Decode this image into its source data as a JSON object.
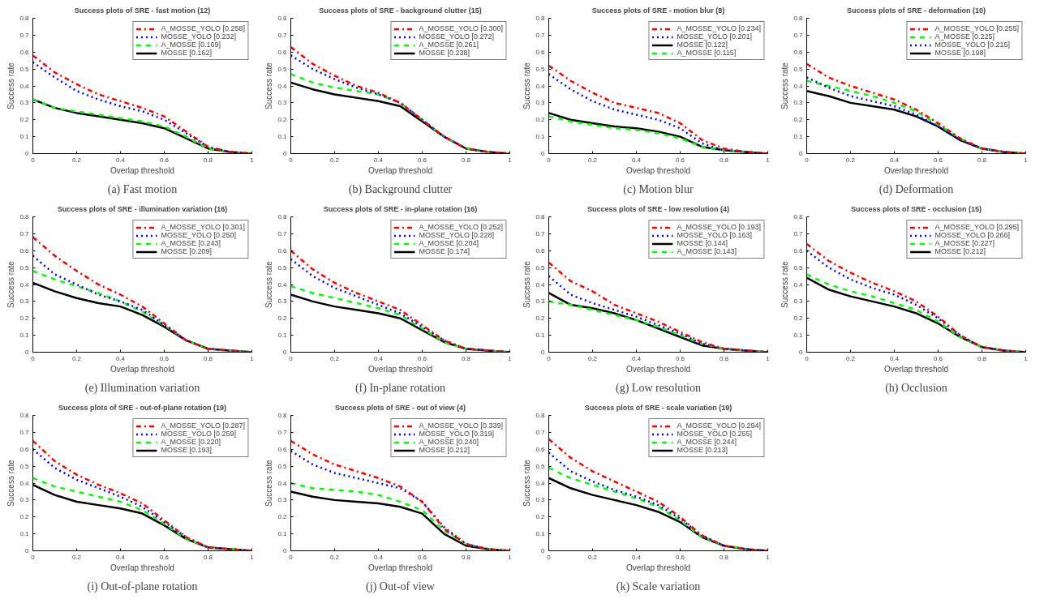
{
  "chart_data": [
    {
      "type": "line",
      "title": "Success plots of SRE - fast motion (12)",
      "xlabel": "Overlap threshold",
      "ylabel": "Success rate",
      "annotations": [
        "(a) Fast motion"
      ],
      "x": [
        0,
        0.1,
        0.2,
        0.3,
        0.4,
        0.5,
        0.6,
        0.7,
        0.8,
        0.9,
        1
      ],
      "xlim": [
        0,
        1
      ],
      "ylim": [
        0,
        0.8
      ],
      "xticks": [
        0,
        0.2,
        0.4,
        0.6,
        0.8,
        1
      ],
      "yticks": [
        0,
        0.1,
        0.2,
        0.3,
        0.4,
        0.5,
        0.6,
        0.7,
        0.8
      ],
      "legend": "top right",
      "series": [
        {
          "name": "A_MOSSE_YOLO [0.258]",
          "color": "#ff0000",
          "line_style": "dashdot",
          "values": [
            0.58,
            0.48,
            0.41,
            0.35,
            0.31,
            0.27,
            0.22,
            0.13,
            0.04,
            0.01,
            0
          ]
        },
        {
          "name": "MOSSE_YOLO [0.232]",
          "color": "#0000ff",
          "line_style": "dotted",
          "values": [
            0.54,
            0.45,
            0.37,
            0.32,
            0.28,
            0.25,
            0.2,
            0.12,
            0.04,
            0.01,
            0
          ]
        },
        {
          "name": "A_MOSSE [0.169]",
          "color": "#00ff00",
          "line_style": "dashed",
          "values": [
            0.32,
            0.27,
            0.25,
            0.23,
            0.21,
            0.19,
            0.16,
            0.1,
            0.03,
            0.01,
            0
          ]
        },
        {
          "name": "MOSSE [0.162]",
          "color": "#000000",
          "line_style": "solid",
          "values": [
            0.32,
            0.27,
            0.24,
            0.22,
            0.2,
            0.18,
            0.15,
            0.09,
            0.03,
            0.01,
            0
          ]
        }
      ]
    },
    {
      "type": "line",
      "title": "Success plots of SRE - background clutter (15)",
      "xlabel": "Overlap threshold",
      "ylabel": "Success rate",
      "annotations": [
        "(b) Background clutter"
      ],
      "x": [
        0,
        0.1,
        0.2,
        0.3,
        0.4,
        0.5,
        0.6,
        0.7,
        0.8,
        0.9,
        1
      ],
      "xlim": [
        0,
        1
      ],
      "ylim": [
        0,
        0.8
      ],
      "xticks": [
        0,
        0.2,
        0.4,
        0.6,
        0.8,
        1
      ],
      "yticks": [
        0,
        0.1,
        0.2,
        0.3,
        0.4,
        0.5,
        0.6,
        0.7,
        0.8
      ],
      "legend": "top right",
      "series": [
        {
          "name": "A_MOSSE_YOLO [0.300]",
          "color": "#ff0000",
          "line_style": "dashdot",
          "values": [
            0.63,
            0.53,
            0.46,
            0.4,
            0.36,
            0.3,
            0.2,
            0.1,
            0.03,
            0.01,
            0
          ]
        },
        {
          "name": "MOSSE_YOLO [0.272]",
          "color": "#0000ff",
          "line_style": "dotted",
          "values": [
            0.58,
            0.5,
            0.44,
            0.39,
            0.35,
            0.3,
            0.2,
            0.1,
            0.03,
            0.01,
            0
          ]
        },
        {
          "name": "A_MOSSE [0.261]",
          "color": "#00ff00",
          "line_style": "dashed",
          "values": [
            0.47,
            0.42,
            0.39,
            0.37,
            0.35,
            0.3,
            0.2,
            0.1,
            0.03,
            0.01,
            0
          ]
        },
        {
          "name": "MOSSE [0.238]",
          "color": "#000000",
          "line_style": "solid",
          "values": [
            0.42,
            0.38,
            0.35,
            0.33,
            0.31,
            0.28,
            0.19,
            0.1,
            0.03,
            0.01,
            0
          ]
        }
      ]
    },
    {
      "type": "line",
      "title": "Success plots of SRE - motion blur (8)",
      "xlabel": "Overlap threshold",
      "ylabel": "Success rate",
      "annotations": [
        "(c) Motion blur"
      ],
      "x": [
        0,
        0.1,
        0.2,
        0.3,
        0.4,
        0.5,
        0.6,
        0.7,
        0.8,
        0.9,
        1
      ],
      "xlim": [
        0,
        1
      ],
      "ylim": [
        0,
        0.8
      ],
      "xticks": [
        0,
        0.2,
        0.4,
        0.6,
        0.8,
        1
      ],
      "yticks": [
        0,
        0.1,
        0.2,
        0.3,
        0.4,
        0.5,
        0.6,
        0.7,
        0.8
      ],
      "legend": "top right",
      "series": [
        {
          "name": "A_MOSSE_YOLO [0.234]",
          "color": "#ff0000",
          "line_style": "dashdot",
          "values": [
            0.52,
            0.43,
            0.36,
            0.3,
            0.27,
            0.24,
            0.18,
            0.08,
            0.03,
            0.01,
            0
          ]
        },
        {
          "name": "MOSSE_YOLO [0.201]",
          "color": "#0000ff",
          "line_style": "dotted",
          "values": [
            0.47,
            0.38,
            0.31,
            0.26,
            0.23,
            0.2,
            0.15,
            0.06,
            0.02,
            0.01,
            0
          ]
        },
        {
          "name": "MOSSE [0.122]",
          "color": "#000000",
          "line_style": "solid",
          "values": [
            0.24,
            0.2,
            0.18,
            0.16,
            0.15,
            0.13,
            0.1,
            0.04,
            0.02,
            0.01,
            0
          ]
        },
        {
          "name": "A_MOSSE [0.115]",
          "color": "#00ff00",
          "line_style": "dashed",
          "values": [
            0.22,
            0.19,
            0.17,
            0.15,
            0.14,
            0.12,
            0.09,
            0.04,
            0.02,
            0.01,
            0
          ]
        }
      ]
    },
    {
      "type": "line",
      "title": "Success plots of SRE - deformation (10)",
      "xlabel": "Overlap threshold",
      "ylabel": "Success rate",
      "annotations": [
        "(d) Deformation"
      ],
      "x": [
        0,
        0.1,
        0.2,
        0.3,
        0.4,
        0.5,
        0.6,
        0.7,
        0.8,
        0.9,
        1
      ],
      "xlim": [
        0,
        1
      ],
      "ylim": [
        0,
        0.8
      ],
      "xticks": [
        0,
        0.2,
        0.4,
        0.6,
        0.8,
        1
      ],
      "yticks": [
        0,
        0.1,
        0.2,
        0.3,
        0.4,
        0.5,
        0.6,
        0.7,
        0.8
      ],
      "legend": "top right",
      "series": [
        {
          "name": "A_MOSSE_YOLO [0.255]",
          "color": "#ff0000",
          "line_style": "dashdot",
          "values": [
            0.53,
            0.45,
            0.4,
            0.36,
            0.32,
            0.26,
            0.18,
            0.09,
            0.03,
            0.01,
            0
          ]
        },
        {
          "name": "A_MOSSE [0.225]",
          "color": "#00ff00",
          "line_style": "dashed",
          "values": [
            0.43,
            0.4,
            0.37,
            0.34,
            0.3,
            0.25,
            0.17,
            0.09,
            0.03,
            0.01,
            0
          ]
        },
        {
          "name": "MOSSE_YOLO [0.215]",
          "color": "#0000ff",
          "line_style": "dotted",
          "values": [
            0.45,
            0.39,
            0.34,
            0.31,
            0.28,
            0.23,
            0.16,
            0.08,
            0.03,
            0.01,
            0
          ]
        },
        {
          "name": "MOSSE [0.198]",
          "color": "#000000",
          "line_style": "solid",
          "values": [
            0.37,
            0.34,
            0.3,
            0.28,
            0.26,
            0.22,
            0.16,
            0.08,
            0.03,
            0.01,
            0
          ]
        }
      ]
    },
    {
      "type": "line",
      "title": "Success plots of SRE - illumination variation (16)",
      "xlabel": "Overlap threshold",
      "ylabel": "Success rate",
      "annotations": [
        "(e) Illumination variation"
      ],
      "x": [
        0,
        0.1,
        0.2,
        0.3,
        0.4,
        0.5,
        0.6,
        0.7,
        0.8,
        0.9,
        1
      ],
      "xlim": [
        0,
        1
      ],
      "ylim": [
        0,
        0.8
      ],
      "xticks": [
        0,
        0.2,
        0.4,
        0.6,
        0.8,
        1
      ],
      "yticks": [
        0,
        0.1,
        0.2,
        0.3,
        0.4,
        0.5,
        0.6,
        0.7,
        0.8
      ],
      "legend": "top right",
      "series": [
        {
          "name": "A_MOSSE_YOLO [0.301]",
          "color": "#ff0000",
          "line_style": "dashdot",
          "values": [
            0.68,
            0.57,
            0.48,
            0.4,
            0.34,
            0.27,
            0.17,
            0.07,
            0.02,
            0.01,
            0
          ]
        },
        {
          "name": "MOSSE_YOLO [0.250]",
          "color": "#0000ff",
          "line_style": "dotted",
          "values": [
            0.57,
            0.46,
            0.4,
            0.34,
            0.3,
            0.25,
            0.16,
            0.07,
            0.02,
            0.01,
            0
          ]
        },
        {
          "name": "A_MOSSE [0.243]",
          "color": "#00ff00",
          "line_style": "dashed",
          "values": [
            0.48,
            0.43,
            0.39,
            0.35,
            0.3,
            0.24,
            0.16,
            0.07,
            0.02,
            0.01,
            0
          ]
        },
        {
          "name": "MOSSE [0.209]",
          "color": "#000000",
          "line_style": "solid",
          "values": [
            0.41,
            0.36,
            0.32,
            0.29,
            0.27,
            0.22,
            0.15,
            0.07,
            0.02,
            0.01,
            0
          ]
        }
      ]
    },
    {
      "type": "line",
      "title": "Success plots of SRE - in-plane rotation (16)",
      "xlabel": "Overlap threshold",
      "ylabel": "Success rate",
      "annotations": [
        "(f) In-plane rotation"
      ],
      "x": [
        0,
        0.1,
        0.2,
        0.3,
        0.4,
        0.5,
        0.6,
        0.7,
        0.8,
        0.9,
        1
      ],
      "xlim": [
        0,
        1
      ],
      "ylim": [
        0,
        0.8
      ],
      "xticks": [
        0,
        0.2,
        0.4,
        0.6,
        0.8,
        1
      ],
      "yticks": [
        0,
        0.1,
        0.2,
        0.3,
        0.4,
        0.5,
        0.6,
        0.7,
        0.8
      ],
      "legend": "top right",
      "series": [
        {
          "name": "A_MOSSE_YOLO [0.252]",
          "color": "#ff0000",
          "line_style": "dashdot",
          "values": [
            0.6,
            0.49,
            0.41,
            0.35,
            0.3,
            0.25,
            0.16,
            0.07,
            0.02,
            0.01,
            0
          ]
        },
        {
          "name": "MOSSE_YOLO [0.228]",
          "color": "#0000ff",
          "line_style": "dotted",
          "values": [
            0.55,
            0.45,
            0.38,
            0.33,
            0.28,
            0.23,
            0.15,
            0.07,
            0.02,
            0.01,
            0
          ]
        },
        {
          "name": "A_MOSSE [0.204]",
          "color": "#00ff00",
          "line_style": "dashed",
          "values": [
            0.39,
            0.35,
            0.32,
            0.29,
            0.26,
            0.22,
            0.14,
            0.06,
            0.02,
            0.01,
            0
          ]
        },
        {
          "name": "MOSSE [0.174]",
          "color": "#000000",
          "line_style": "solid",
          "values": [
            0.34,
            0.3,
            0.27,
            0.25,
            0.23,
            0.2,
            0.13,
            0.06,
            0.02,
            0.01,
            0
          ]
        }
      ]
    },
    {
      "type": "line",
      "title": "Success plots of SRE - low resolution (4)",
      "xlabel": "Overlap threshold",
      "ylabel": "Success rate",
      "annotations": [
        "(g) Low resolution"
      ],
      "x": [
        0,
        0.1,
        0.2,
        0.3,
        0.4,
        0.5,
        0.6,
        0.7,
        0.8,
        0.9,
        1
      ],
      "xlim": [
        0,
        1
      ],
      "ylim": [
        0,
        0.8
      ],
      "xticks": [
        0,
        0.2,
        0.4,
        0.6,
        0.8,
        1
      ],
      "yticks": [
        0,
        0.1,
        0.2,
        0.3,
        0.4,
        0.5,
        0.6,
        0.7,
        0.8
      ],
      "legend": "top right",
      "series": [
        {
          "name": "A_MOSSE_YOLO [0.193]",
          "color": "#ff0000",
          "line_style": "dashdot",
          "values": [
            0.53,
            0.42,
            0.36,
            0.28,
            0.23,
            0.18,
            0.12,
            0.06,
            0.02,
            0.01,
            0
          ]
        },
        {
          "name": "MOSSE_YOLO [0.163]",
          "color": "#0000ff",
          "line_style": "dotted",
          "values": [
            0.45,
            0.34,
            0.29,
            0.25,
            0.21,
            0.16,
            0.11,
            0.05,
            0.02,
            0.01,
            0
          ]
        },
        {
          "name": "MOSSE [0.144]",
          "color": "#000000",
          "line_style": "solid",
          "values": [
            0.35,
            0.28,
            0.26,
            0.23,
            0.19,
            0.14,
            0.09,
            0.04,
            0.02,
            0.01,
            0
          ]
        },
        {
          "name": "A_MOSSE [0.143]",
          "color": "#00ff00",
          "line_style": "dashed",
          "values": [
            0.3,
            0.28,
            0.25,
            0.22,
            0.19,
            0.15,
            0.1,
            0.05,
            0.02,
            0.01,
            0
          ]
        }
      ]
    },
    {
      "type": "line",
      "title": "Success plots of SRE - occlusion (15)",
      "xlabel": "Overlap threshold",
      "ylabel": "Success rate",
      "annotations": [
        "(h) Occlusion"
      ],
      "x": [
        0,
        0.1,
        0.2,
        0.3,
        0.4,
        0.5,
        0.6,
        0.7,
        0.8,
        0.9,
        1
      ],
      "xlim": [
        0,
        1
      ],
      "ylim": [
        0,
        0.8
      ],
      "xticks": [
        0,
        0.2,
        0.4,
        0.6,
        0.8,
        1
      ],
      "yticks": [
        0,
        0.1,
        0.2,
        0.3,
        0.4,
        0.5,
        0.6,
        0.7,
        0.8
      ],
      "legend": "top right",
      "series": [
        {
          "name": "A_MOSSE_YOLO [0.295]",
          "color": "#ff0000",
          "line_style": "dashdot",
          "values": [
            0.64,
            0.54,
            0.47,
            0.41,
            0.36,
            0.3,
            0.21,
            0.1,
            0.03,
            0.01,
            0
          ]
        },
        {
          "name": "MOSSE_YOLO [0.266]",
          "color": "#0000ff",
          "line_style": "dotted",
          "values": [
            0.6,
            0.5,
            0.43,
            0.38,
            0.34,
            0.28,
            0.2,
            0.1,
            0.03,
            0.01,
            0
          ]
        },
        {
          "name": "A_MOSSE [0.227]",
          "color": "#00ff00",
          "line_style": "dashed",
          "values": [
            0.46,
            0.4,
            0.36,
            0.33,
            0.29,
            0.25,
            0.18,
            0.09,
            0.03,
            0.01,
            0
          ]
        },
        {
          "name": "MOSSE [0.212]",
          "color": "#000000",
          "line_style": "solid",
          "values": [
            0.44,
            0.37,
            0.33,
            0.3,
            0.27,
            0.23,
            0.17,
            0.09,
            0.03,
            0.01,
            0
          ]
        }
      ]
    },
    {
      "type": "line",
      "title": "Success plots of SRE - out-of-plane rotation (19)",
      "xlabel": "Overlap threshold",
      "ylabel": "Success rate",
      "annotations": [
        "(i) Out-of-plane rotation"
      ],
      "x": [
        0,
        0.1,
        0.2,
        0.3,
        0.4,
        0.5,
        0.6,
        0.7,
        0.8,
        0.9,
        1
      ],
      "xlim": [
        0,
        1
      ],
      "ylim": [
        0,
        0.8
      ],
      "xticks": [
        0,
        0.2,
        0.4,
        0.6,
        0.8,
        1
      ],
      "yticks": [
        0,
        0.1,
        0.2,
        0.3,
        0.4,
        0.5,
        0.6,
        0.7,
        0.8
      ],
      "legend": "top right",
      "series": [
        {
          "name": "A_MOSSE_YOLO [0.287]",
          "color": "#ff0000",
          "line_style": "dashdot",
          "values": [
            0.65,
            0.53,
            0.45,
            0.39,
            0.34,
            0.28,
            0.18,
            0.08,
            0.02,
            0.01,
            0
          ]
        },
        {
          "name": "MOSSE_YOLO [0.259]",
          "color": "#0000ff",
          "line_style": "dotted",
          "values": [
            0.6,
            0.49,
            0.42,
            0.37,
            0.32,
            0.26,
            0.17,
            0.08,
            0.02,
            0.01,
            0
          ]
        },
        {
          "name": "A_MOSSE [0.220]",
          "color": "#00ff00",
          "line_style": "dashed",
          "values": [
            0.43,
            0.38,
            0.35,
            0.32,
            0.29,
            0.24,
            0.16,
            0.07,
            0.02,
            0.01,
            0
          ]
        },
        {
          "name": "MOSSE [0.193]",
          "color": "#000000",
          "line_style": "solid",
          "values": [
            0.39,
            0.33,
            0.29,
            0.27,
            0.25,
            0.22,
            0.15,
            0.07,
            0.02,
            0.01,
            0
          ]
        }
      ]
    },
    {
      "type": "line",
      "title": "Success plots of SRE - out of view (4)",
      "xlabel": "Overlap threshold",
      "ylabel": "Success rate",
      "annotations": [
        "(j) Out-of view"
      ],
      "x": [
        0,
        0.1,
        0.2,
        0.3,
        0.4,
        0.5,
        0.6,
        0.7,
        0.8,
        0.9,
        1
      ],
      "xlim": [
        0,
        1
      ],
      "ylim": [
        0,
        0.8
      ],
      "xticks": [
        0,
        0.2,
        0.4,
        0.6,
        0.8,
        1
      ],
      "yticks": [
        0,
        0.1,
        0.2,
        0.3,
        0.4,
        0.5,
        0.6,
        0.7,
        0.8
      ],
      "legend": "top right",
      "series": [
        {
          "name": "A_MOSSE_YOLO [0.339]",
          "color": "#ff0000",
          "line_style": "dashdot",
          "values": [
            0.65,
            0.57,
            0.51,
            0.47,
            0.43,
            0.38,
            0.29,
            0.13,
            0.04,
            0.01,
            0
          ]
        },
        {
          "name": "MOSSE_YOLO [0.319]",
          "color": "#0000ff",
          "line_style": "dotted",
          "values": [
            0.59,
            0.51,
            0.46,
            0.43,
            0.4,
            0.37,
            0.29,
            0.14,
            0.04,
            0.01,
            0
          ]
        },
        {
          "name": "A_MOSSE [0.240]",
          "color": "#00ff00",
          "line_style": "dashed",
          "values": [
            0.4,
            0.37,
            0.36,
            0.35,
            0.33,
            0.29,
            0.24,
            0.12,
            0.04,
            0.01,
            0
          ]
        },
        {
          "name": "MOSSE [0.212]",
          "color": "#000000",
          "line_style": "solid",
          "values": [
            0.35,
            0.32,
            0.3,
            0.29,
            0.28,
            0.26,
            0.22,
            0.1,
            0.03,
            0.01,
            0
          ]
        }
      ]
    },
    {
      "type": "line",
      "title": "Success plots of SRE - scale variation (19)",
      "xlabel": "Overlap threshold",
      "ylabel": "Success rate",
      "annotations": [
        "(k) Scale variation"
      ],
      "x": [
        0,
        0.1,
        0.2,
        0.3,
        0.4,
        0.5,
        0.6,
        0.7,
        0.8,
        0.9,
        1
      ],
      "xlim": [
        0,
        1
      ],
      "ylim": [
        0,
        0.8
      ],
      "xticks": [
        0,
        0.2,
        0.4,
        0.6,
        0.8,
        1
      ],
      "yticks": [
        0,
        0.1,
        0.2,
        0.3,
        0.4,
        0.5,
        0.6,
        0.7,
        0.8
      ],
      "legend": "top right",
      "series": [
        {
          "name": "A_MOSSE_YOLO [0.294]",
          "color": "#ff0000",
          "line_style": "dashdot",
          "values": [
            0.66,
            0.55,
            0.47,
            0.41,
            0.35,
            0.29,
            0.2,
            0.09,
            0.03,
            0.01,
            0
          ]
        },
        {
          "name": "MOSSE_YOLO [0.255]",
          "color": "#0000ff",
          "line_style": "dotted",
          "values": [
            0.58,
            0.47,
            0.41,
            0.36,
            0.32,
            0.27,
            0.19,
            0.09,
            0.03,
            0.01,
            0
          ]
        },
        {
          "name": "A_MOSSE [0.244]",
          "color": "#00ff00",
          "line_style": "dashed",
          "values": [
            0.49,
            0.43,
            0.39,
            0.35,
            0.31,
            0.26,
            0.18,
            0.08,
            0.03,
            0.01,
            0
          ]
        },
        {
          "name": "MOSSE [0.213]",
          "color": "#000000",
          "line_style": "solid",
          "values": [
            0.43,
            0.37,
            0.33,
            0.3,
            0.27,
            0.23,
            0.17,
            0.08,
            0.03,
            0.01,
            0
          ]
        }
      ]
    }
  ]
}
